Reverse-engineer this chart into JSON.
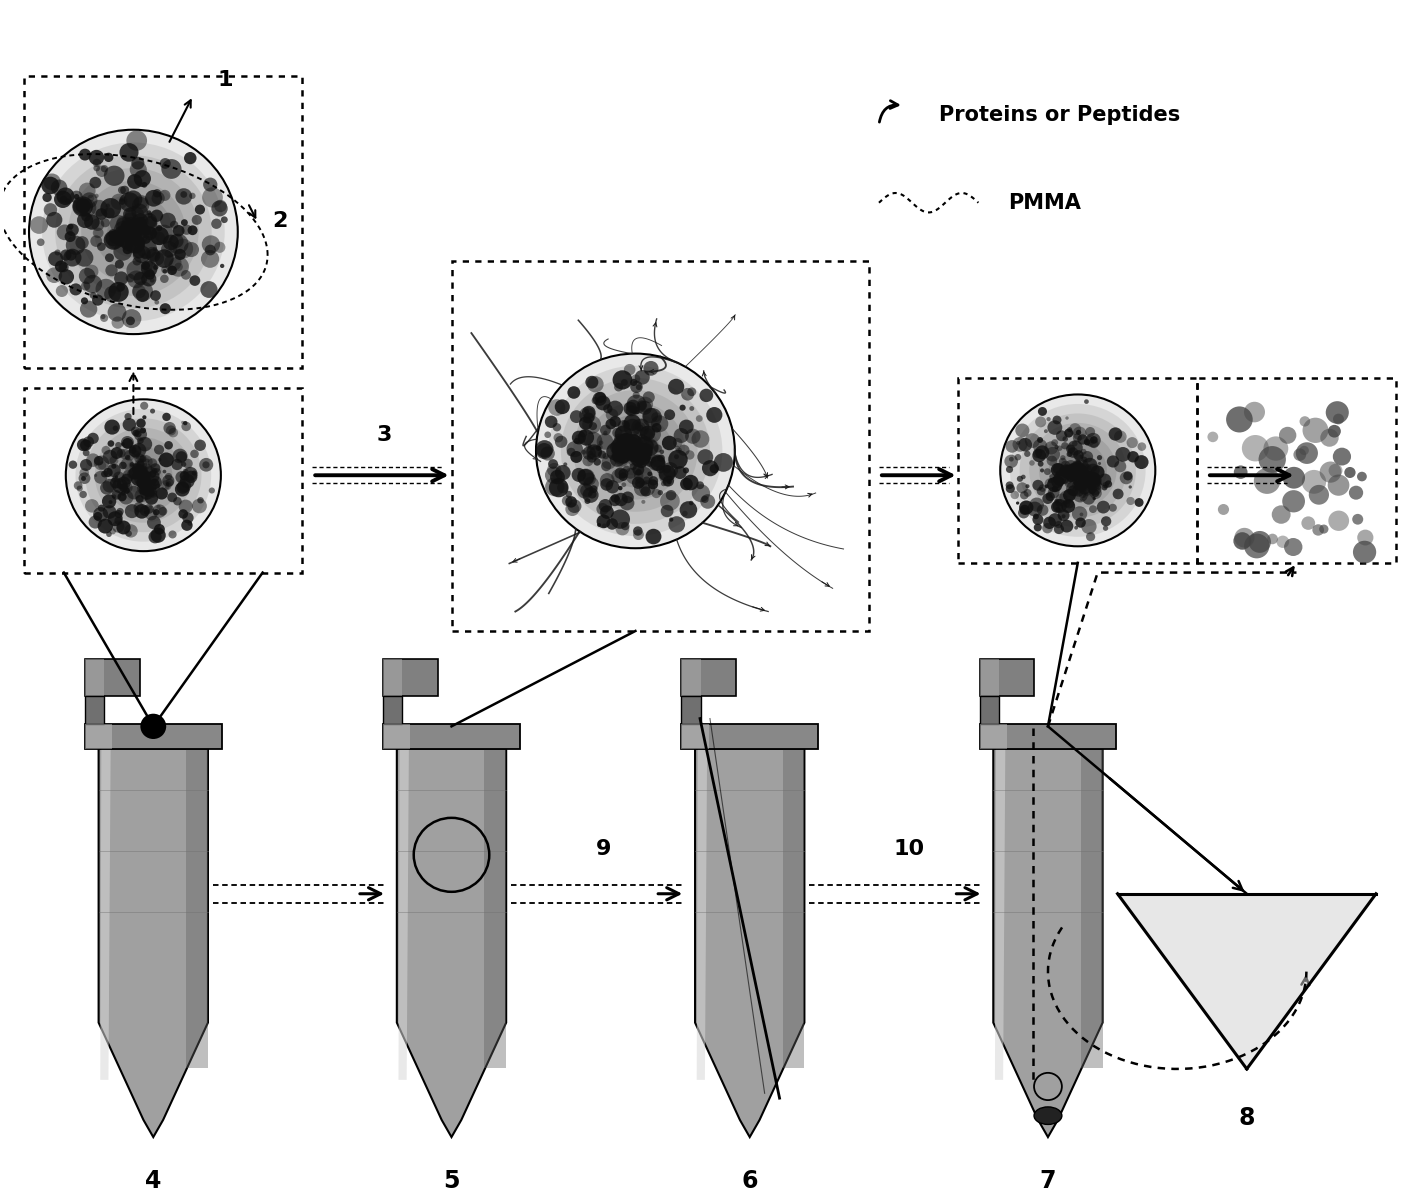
{
  "fig_width": 14.09,
  "fig_height": 11.94,
  "bg_color": "#ffffff",
  "legend_proteins": "Proteins or Peptides",
  "legend_pmma": "PMMA",
  "steps": [
    "1",
    "2",
    "3",
    "4",
    "5",
    "6",
    "7",
    "8",
    "9",
    "10"
  ],
  "colors": {
    "black": "#000000",
    "tube_gray": "#909090",
    "tube_dark": "#505050",
    "tube_light": "#c8c8c8",
    "sphere_mid": "#707070",
    "sphere_dark": "#252525"
  }
}
